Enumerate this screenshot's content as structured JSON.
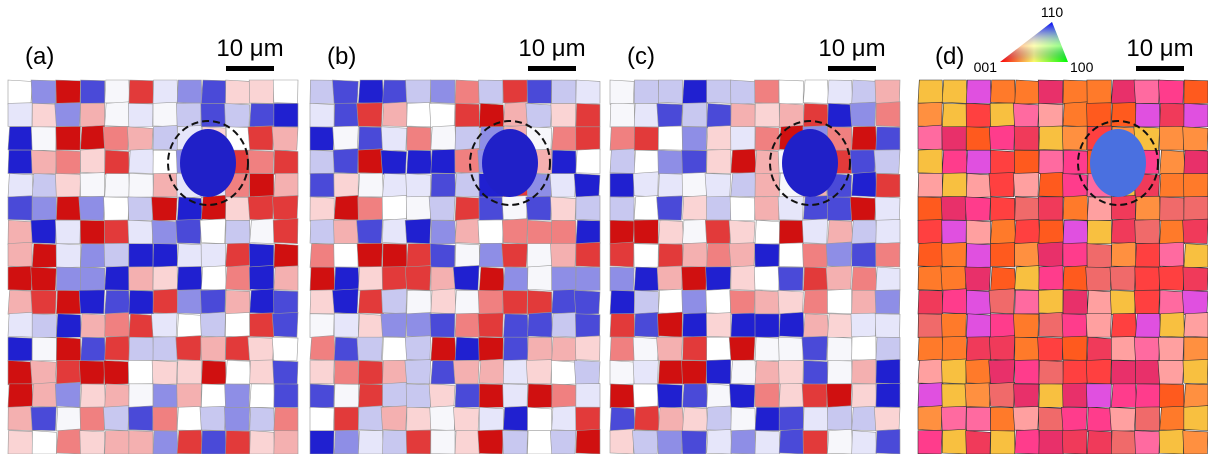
{
  "panels": [
    {
      "label": "(a)",
      "scale": "10 μm"
    },
    {
      "label": "(b)",
      "scale": "10 μm"
    },
    {
      "label": "(c)",
      "scale": "10 μm"
    },
    {
      "label": "(d)",
      "scale": "10 μm"
    }
  ],
  "color_key": {
    "top": "110",
    "left": "001",
    "right": "100"
  }
}
